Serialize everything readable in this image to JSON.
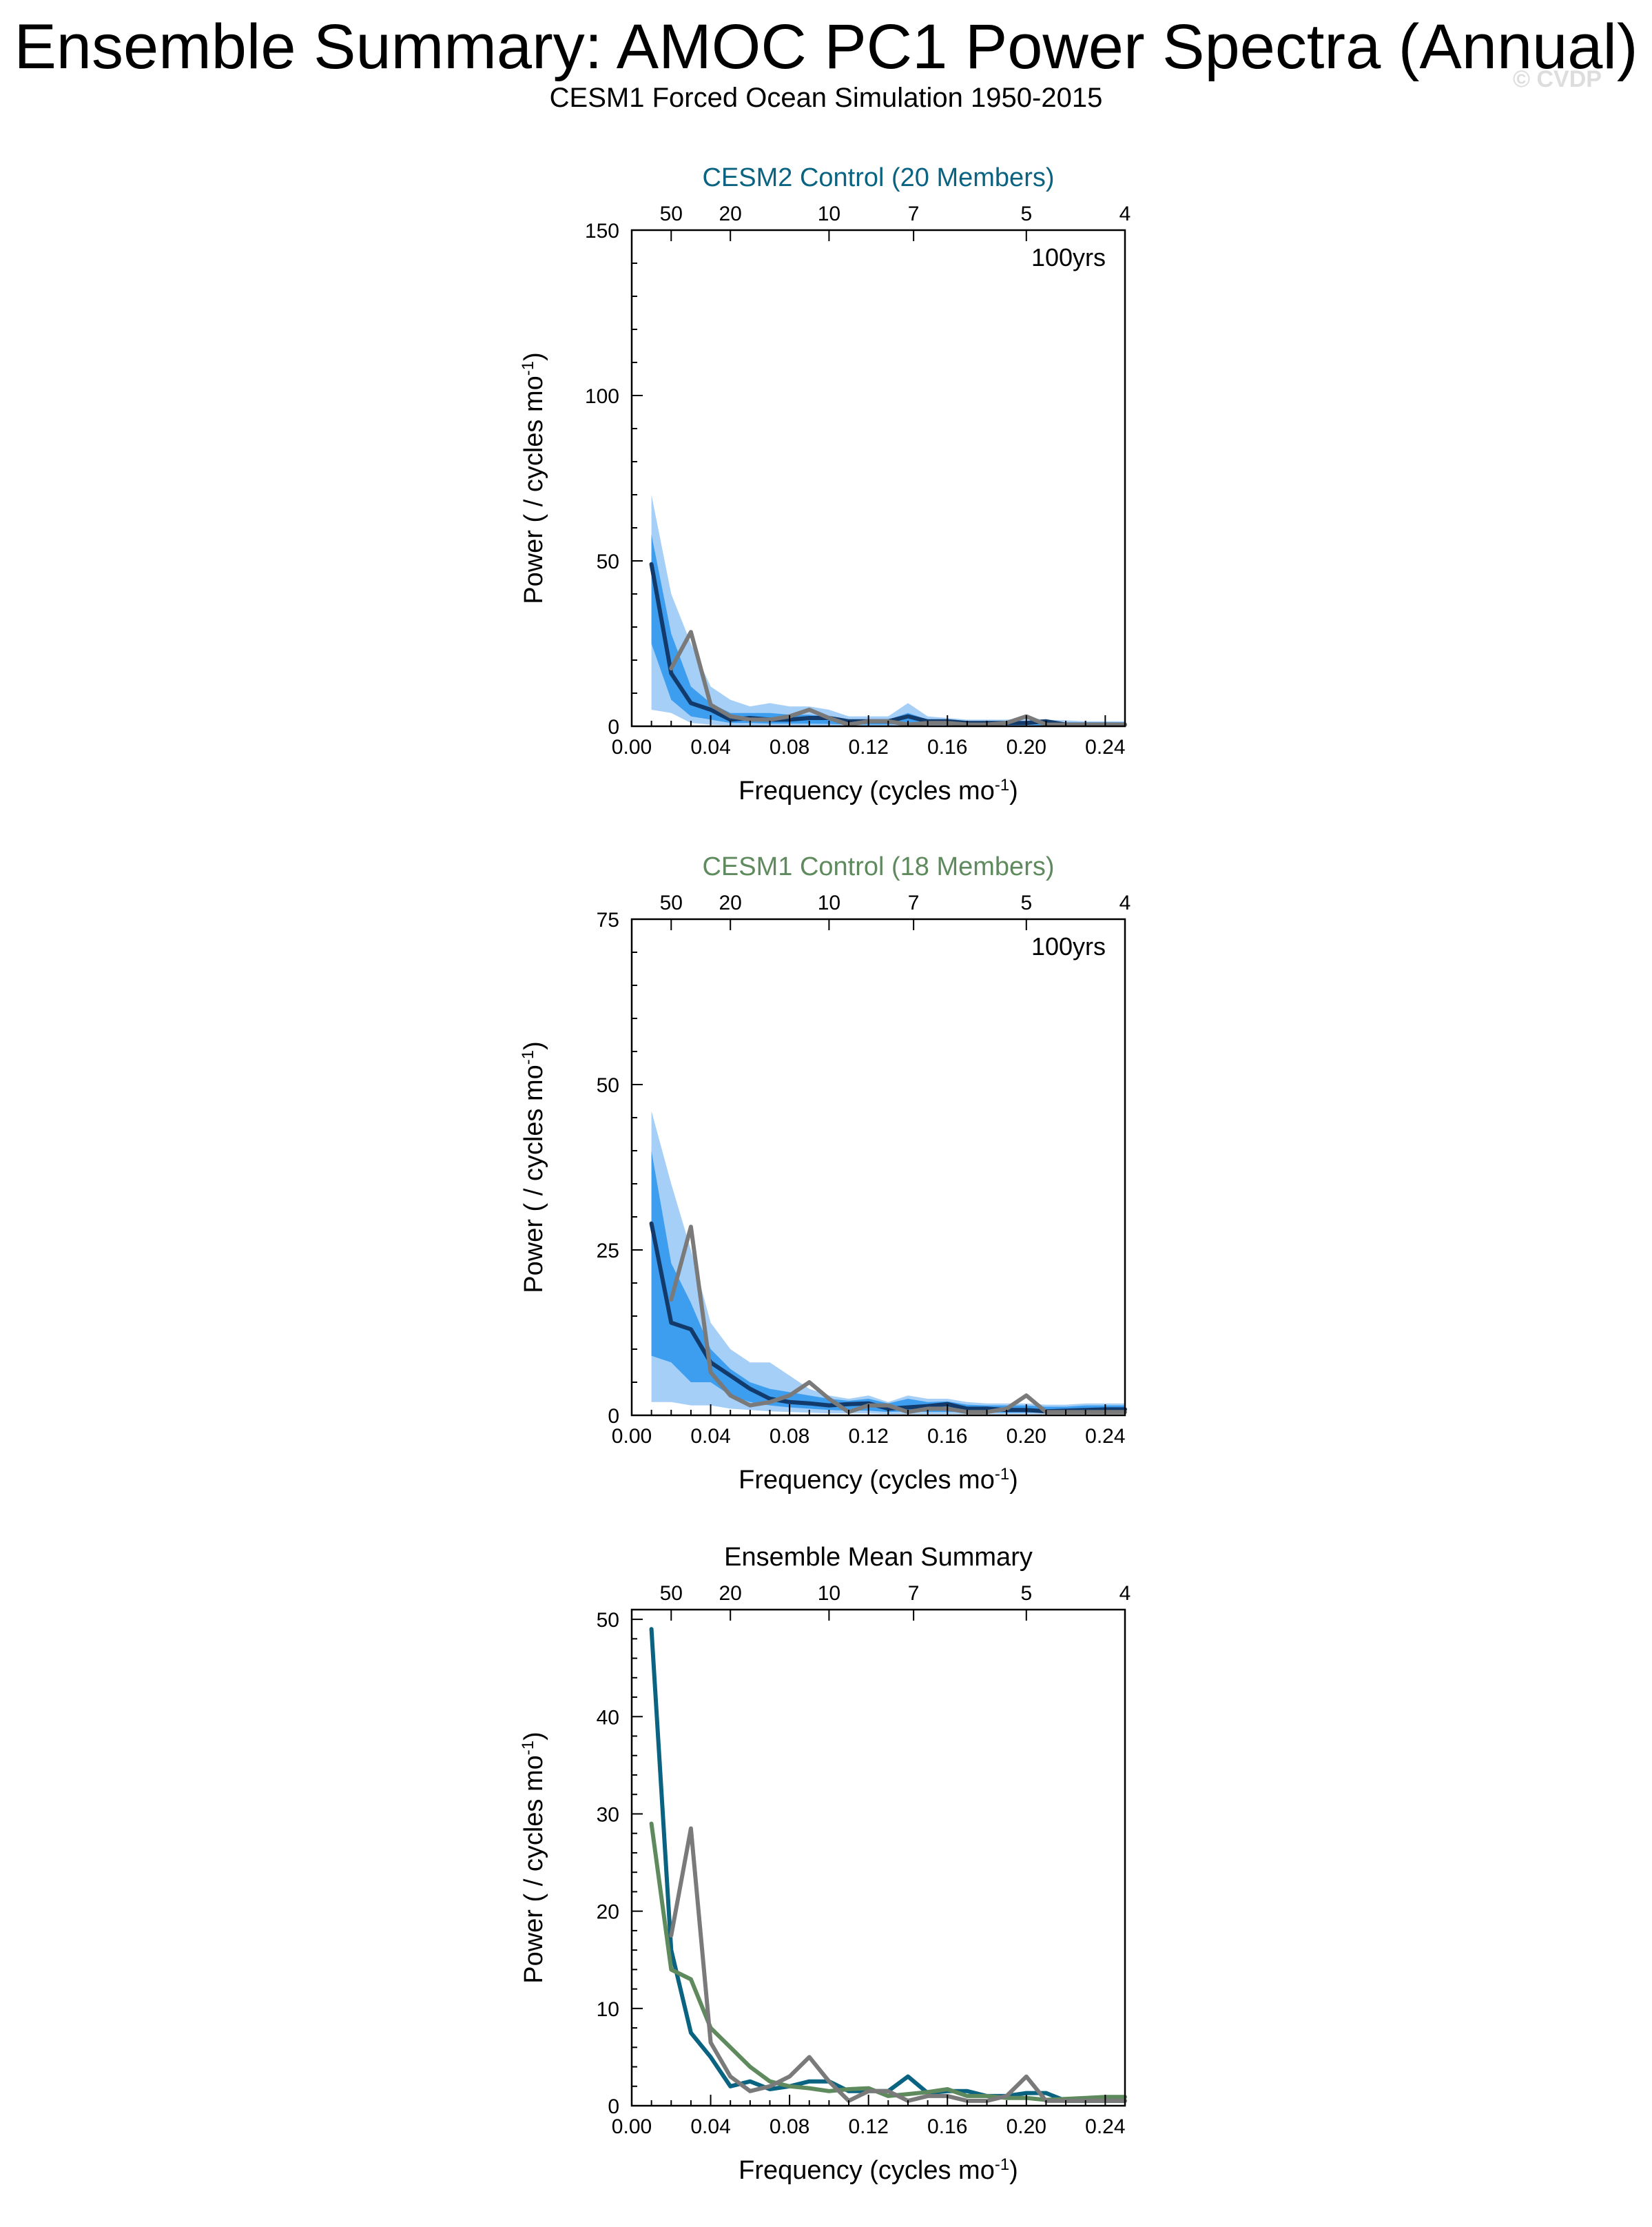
{
  "title": "Ensemble Summary: AMOC PC1 Power Spectra (Annual)",
  "subtitle": "CESM1 Forced Ocean Simulation 1950-2015",
  "watermark": "© CVDP",
  "colors": {
    "cesm2": "#0a6380",
    "cesm1": "#5e8a5e",
    "observed": "#7a7a7a",
    "ensemble_mean_line": "#123a6b",
    "band_outer": "#a6cff7",
    "band_inner": "#3d9ef0",
    "axis": "#000000"
  },
  "chart_data": [
    {
      "type": "line",
      "title": "CESM2 Control (20 Members)",
      "annotation": "100yrs",
      "xlabel": "Frequency (cycles mo",
      "xlabel_sup": "-1",
      "xlabel_end": ")",
      "ylabel": "Power ( / cycles mo",
      "ylabel_sup": "-1",
      "ylabel_end": ")",
      "xlim": [
        0,
        0.25
      ],
      "ylim": [
        0,
        150
      ],
      "xticks": [
        0.0,
        0.04,
        0.08,
        0.12,
        0.16,
        0.2,
        0.24
      ],
      "xtick_labels": [
        "0.00",
        "0.04",
        "0.08",
        "0.12",
        "0.16",
        "0.20",
        "0.24"
      ],
      "yticks": [
        0,
        50,
        100,
        150
      ],
      "ytick_labels": [
        "0",
        "50",
        "100",
        "150"
      ],
      "top_ticks": [
        50,
        20,
        10,
        7,
        5,
        4
      ],
      "top_tick_labels": [
        "50",
        "20",
        "10",
        "7",
        "5",
        "4"
      ],
      "x": [
        0.01,
        0.02,
        0.03,
        0.04,
        0.05,
        0.06,
        0.07,
        0.08,
        0.09,
        0.1,
        0.11,
        0.12,
        0.13,
        0.14,
        0.15,
        0.16,
        0.17,
        0.18,
        0.19,
        0.2,
        0.21,
        0.22,
        0.23,
        0.24,
        0.25
      ],
      "band_outer_upper": [
        70,
        40,
        25,
        12,
        8,
        6,
        7,
        6,
        6,
        5,
        3,
        3,
        3,
        7,
        3,
        2.5,
        2,
        2,
        2,
        2.5,
        2,
        1.8,
        1.5,
        1.5,
        1.5
      ],
      "band_outer_lower": [
        5,
        4,
        1,
        0.5,
        0.3,
        0.3,
        0.3,
        0.3,
        0.3,
        0.2,
        0.2,
        0.2,
        0.2,
        0.2,
        0.2,
        0.1,
        0.1,
        0.1,
        0.1,
        0.1,
        0.1,
        0.1,
        0.1,
        0.1,
        0.1
      ],
      "band_inner_upper": [
        58,
        28,
        12,
        7,
        4,
        4,
        4,
        3.5,
        3.5,
        3,
        2,
        2,
        2,
        4,
        2,
        1.8,
        1.5,
        1.5,
        1.5,
        1.5,
        1.4,
        1.2,
        1.2,
        1.2,
        1.2
      ],
      "band_inner_lower": [
        25,
        8,
        3,
        2,
        1,
        1,
        0.8,
        0.8,
        0.8,
        0.7,
        0.5,
        0.5,
        0.5,
        0.8,
        0.5,
        0.4,
        0.4,
        0.3,
        0.3,
        0.4,
        0.3,
        0.3,
        0.3,
        0.3,
        0.3
      ],
      "series": [
        {
          "values": [
            49,
            16,
            7,
            5,
            2,
            2.5,
            2,
            2,
            2.5,
            2.5,
            1.5,
            1.5,
            1.5,
            3,
            1.5,
            1.5,
            1,
            1,
            1,
            1,
            1.5,
            0.5,
            0.5,
            0.5,
            0.5
          ]
        },
        {
          "values": [
            null,
            17.5,
            28.5,
            6.5,
            3,
            2,
            2,
            3,
            5,
            2.5,
            0.5,
            1.5,
            1.5,
            0.5,
            1,
            1,
            0.5,
            0.5,
            1,
            3,
            0.5,
            0.5,
            0.5,
            0.5,
            0.5
          ]
        }
      ]
    },
    {
      "type": "line",
      "title": "CESM1 Control (18 Members)",
      "annotation": "100yrs",
      "xlabel": "Frequency (cycles mo",
      "xlabel_sup": "-1",
      "xlabel_end": ")",
      "ylabel": "Power ( / cycles mo",
      "ylabel_sup": "-1",
      "ylabel_end": ")",
      "xlim": [
        0,
        0.25
      ],
      "ylim": [
        0,
        75
      ],
      "xticks": [
        0.0,
        0.04,
        0.08,
        0.12,
        0.16,
        0.2,
        0.24
      ],
      "xtick_labels": [
        "0.00",
        "0.04",
        "0.08",
        "0.12",
        "0.16",
        "0.20",
        "0.24"
      ],
      "yticks": [
        0,
        25,
        50,
        75
      ],
      "ytick_labels": [
        "0",
        "25",
        "50",
        "75"
      ],
      "top_ticks": [
        50,
        20,
        10,
        7,
        5,
        4
      ],
      "top_tick_labels": [
        "50",
        "20",
        "10",
        "7",
        "5",
        "4"
      ],
      "x": [
        0.01,
        0.02,
        0.03,
        0.04,
        0.05,
        0.06,
        0.07,
        0.08,
        0.09,
        0.1,
        0.11,
        0.12,
        0.13,
        0.14,
        0.15,
        0.16,
        0.17,
        0.18,
        0.19,
        0.2,
        0.21,
        0.22,
        0.23,
        0.24,
        0.25
      ],
      "band_outer_upper": [
        46,
        35,
        25,
        14,
        10,
        8,
        8,
        6,
        4,
        3,
        2.5,
        3,
        2,
        3,
        2.5,
        2.5,
        2,
        1.8,
        1.8,
        1.8,
        1.6,
        1.6,
        1.8,
        1.8,
        1.8
      ],
      "band_outer_lower": [
        2,
        2,
        1.5,
        1.5,
        1,
        0.8,
        0.6,
        0.5,
        0.4,
        0.3,
        0.3,
        0.3,
        0.2,
        0.2,
        0.2,
        0.2,
        0.2,
        0.2,
        0.2,
        0.2,
        0.2,
        0.2,
        0.2,
        0.2,
        0.2
      ],
      "band_inner_upper": [
        40,
        23,
        17,
        10,
        7,
        5,
        4,
        3.5,
        3,
        2.5,
        2.2,
        2.5,
        1.8,
        2.5,
        2,
        2.1,
        1.6,
        1.5,
        1.5,
        1.5,
        1.3,
        1.3,
        1.5,
        1.5,
        1.5
      ],
      "band_inner_lower": [
        9,
        8,
        5,
        5,
        3,
        2,
        1.5,
        1.2,
        1,
        0.8,
        0.7,
        0.7,
        0.5,
        0.6,
        0.5,
        0.5,
        0.5,
        0.4,
        0.4,
        0.4,
        0.4,
        0.4,
        0.4,
        0.4,
        0.4
      ],
      "series": [
        {
          "values": [
            29,
            14,
            13,
            8,
            6,
            4,
            2.5,
            2,
            1.8,
            1.5,
            1.7,
            1.8,
            1,
            1.2,
            1.4,
            1.7,
            1,
            1,
            0.8,
            0.8,
            0.6,
            0.7,
            0.8,
            0.9,
            0.9
          ]
        },
        {
          "values": [
            null,
            17.5,
            28.5,
            6.5,
            3,
            1.5,
            2,
            3,
            5,
            2.5,
            0.5,
            1.5,
            1.5,
            0.5,
            1,
            1,
            0.5,
            0.5,
            1,
            3,
            0.5,
            0.5,
            0.5,
            0.5,
            0.5
          ]
        }
      ]
    },
    {
      "type": "line",
      "title": "Ensemble Mean Summary",
      "xlabel": "Frequency (cycles mo",
      "xlabel_sup": "-1",
      "xlabel_end": ")",
      "ylabel": "Power ( / cycles mo",
      "ylabel_sup": "-1",
      "ylabel_end": ")",
      "xlim": [
        0,
        0.25
      ],
      "ylim": [
        0,
        51
      ],
      "xticks": [
        0.0,
        0.04,
        0.08,
        0.12,
        0.16,
        0.2,
        0.24
      ],
      "xtick_labels": [
        "0.00",
        "0.04",
        "0.08",
        "0.12",
        "0.16",
        "0.20",
        "0.24"
      ],
      "yticks": [
        0,
        10,
        20,
        30,
        40,
        50
      ],
      "ytick_labels": [
        "0",
        "10",
        "20",
        "30",
        "40",
        "50"
      ],
      "top_ticks": [
        50,
        20,
        10,
        7,
        5,
        4
      ],
      "top_tick_labels": [
        "50",
        "20",
        "10",
        "7",
        "5",
        "4"
      ],
      "x": [
        0.01,
        0.02,
        0.03,
        0.04,
        0.05,
        0.06,
        0.07,
        0.08,
        0.09,
        0.1,
        0.11,
        0.12,
        0.13,
        0.14,
        0.15,
        0.16,
        0.17,
        0.18,
        0.19,
        0.2,
        0.21,
        0.22,
        0.23,
        0.24,
        0.25
      ],
      "series": [
        {
          "values": [
            49,
            16,
            7.5,
            5,
            2,
            2.5,
            1.7,
            2,
            2.5,
            2.5,
            1.5,
            1.5,
            1.5,
            3,
            1.3,
            1.5,
            1.5,
            1,
            1,
            1.3,
            1.3,
            0.5,
            0.5,
            0.5,
            0.5
          ]
        },
        {
          "values": [
            29,
            14,
            13,
            8,
            6,
            4,
            2.5,
            2,
            1.8,
            1.5,
            1.7,
            1.8,
            1,
            1.2,
            1.4,
            1.7,
            1,
            1,
            0.8,
            0.8,
            0.6,
            0.7,
            0.8,
            0.9,
            0.9
          ]
        },
        {
          "values": [
            null,
            17.5,
            28.5,
            6.5,
            3,
            1.5,
            2,
            3,
            5,
            2.5,
            0.5,
            1.5,
            1.5,
            0.5,
            1,
            1,
            0.5,
            0.5,
            1,
            3,
            0.5,
            0.5,
            0.5,
            0.5,
            0.5
          ]
        }
      ]
    }
  ]
}
